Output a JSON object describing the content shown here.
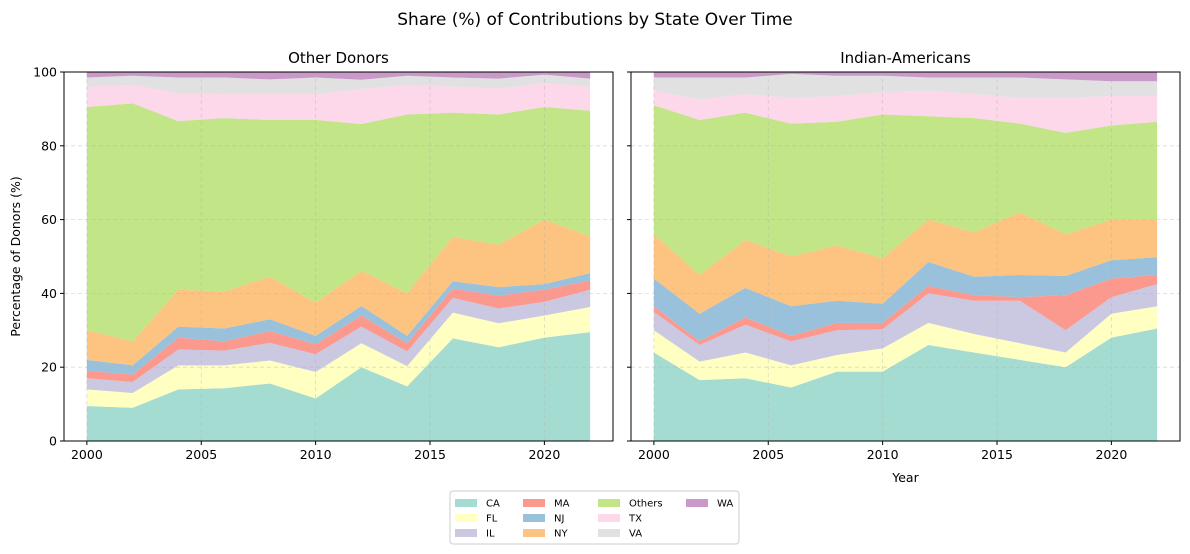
{
  "title": "Share (%) of Contributions by State Over Time",
  "chart_data": [
    {
      "type": "area",
      "stacked": true,
      "title": "Other Donors",
      "xlabel": "",
      "ylabel": "Percentage of Donors (%)",
      "xlim": [
        1999,
        2023
      ],
      "ylim": [
        0,
        100
      ],
      "xticks": [
        2000,
        2005,
        2010,
        2015,
        2020
      ],
      "yticks": [
        0,
        20,
        40,
        60,
        80,
        100
      ],
      "grid": true,
      "x": [
        2000,
        2002,
        2004,
        2006,
        2008,
        2010,
        2012,
        2014,
        2016,
        2018,
        2020,
        2022
      ],
      "series": [
        {
          "name": "CA",
          "color": "#8dd3c7",
          "values": [
            9.5,
            9.0,
            14.0,
            14.3,
            15.6,
            11.5,
            20.0,
            14.8,
            27.8,
            25.4,
            28.0,
            29.5
          ]
        },
        {
          "name": "FL",
          "color": "#ffffb3",
          "values": [
            4.5,
            4.0,
            6.5,
            6.2,
            6.2,
            7.2,
            6.5,
            5.5,
            7.0,
            6.5,
            6.0,
            6.8
          ]
        },
        {
          "name": "IL",
          "color": "#bebada",
          "values": [
            3.0,
            3.0,
            4.3,
            4.0,
            4.8,
            4.8,
            4.5,
            4.0,
            4.0,
            4.0,
            3.7,
            4.7
          ]
        },
        {
          "name": "MA",
          "color": "#fb8072",
          "values": [
            2.0,
            2.0,
            3.2,
            2.5,
            3.2,
            2.7,
            3.0,
            2.2,
            2.5,
            3.5,
            3.3,
            2.5
          ]
        },
        {
          "name": "NJ",
          "color": "#80b1d3",
          "values": [
            3.0,
            2.5,
            3.0,
            3.5,
            3.2,
            2.3,
            2.6,
            2.0,
            2.0,
            2.3,
            1.5,
            2.0
          ]
        },
        {
          "name": "NY",
          "color": "#fdb462",
          "values": [
            8.0,
            6.5,
            10.0,
            10.0,
            11.5,
            9.0,
            9.5,
            11.5,
            12.0,
            11.5,
            17.5,
            10.0
          ]
        },
        {
          "name": "Others",
          "color": "#b3de69",
          "values": [
            60.5,
            64.5,
            45.7,
            47.0,
            42.5,
            49.5,
            39.8,
            48.5,
            33.7,
            35.3,
            30.5,
            34.0
          ]
        },
        {
          "name": "TX",
          "color": "#fccde5",
          "values": [
            5.5,
            5.0,
            7.5,
            6.5,
            7.0,
            7.0,
            9.5,
            8.0,
            7.0,
            7.0,
            6.5,
            6.5
          ]
        },
        {
          "name": "VA",
          "color": "#d9d9d9",
          "values": [
            2.5,
            2.5,
            4.3,
            4.5,
            4.0,
            4.5,
            2.5,
            2.5,
            2.5,
            2.7,
            2.3,
            2.2
          ]
        },
        {
          "name": "WA",
          "color": "#bc80bd",
          "values": [
            1.5,
            1.0,
            1.5,
            1.5,
            2.0,
            1.5,
            2.1,
            1.0,
            1.5,
            1.8,
            0.7,
            1.8
          ]
        }
      ]
    },
    {
      "type": "area",
      "stacked": true,
      "title": "Indian-Americans",
      "xlabel": "Year",
      "ylabel": "",
      "xlim": [
        1999,
        2023
      ],
      "ylim": [
        0,
        100
      ],
      "xticks": [
        2000,
        2005,
        2010,
        2015,
        2020
      ],
      "yticks": [
        0,
        20,
        40,
        60,
        80,
        100
      ],
      "grid": true,
      "x": [
        2000,
        2002,
        2004,
        2006,
        2008,
        2010,
        2012,
        2014,
        2016,
        2018,
        2020,
        2022
      ],
      "series": [
        {
          "name": "CA",
          "color": "#8dd3c7",
          "values": [
            24.0,
            16.5,
            17.0,
            14.5,
            18.8,
            18.8,
            26.0,
            24.0,
            22.0,
            20.0,
            28.0,
            30.5
          ]
        },
        {
          "name": "FL",
          "color": "#ffffb3",
          "values": [
            6.0,
            5.0,
            7.0,
            6.0,
            4.5,
            6.3,
            6.0,
            5.0,
            4.5,
            4.0,
            6.5,
            6.0
          ]
        },
        {
          "name": "IL",
          "color": "#bebada",
          "values": [
            5.0,
            4.5,
            7.5,
            6.5,
            6.7,
            5.2,
            8.0,
            9.0,
            11.5,
            6.0,
            4.5,
            6.0
          ]
        },
        {
          "name": "MA",
          "color": "#fb8072",
          "values": [
            1.5,
            1.0,
            2.0,
            1.5,
            2.0,
            1.7,
            2.0,
            1.5,
            1.0,
            9.5,
            5.0,
            2.5
          ]
        },
        {
          "name": "NJ",
          "color": "#80b1d3",
          "values": [
            7.5,
            7.5,
            8.0,
            8.0,
            6.0,
            5.2,
            6.5,
            5.0,
            6.0,
            5.2,
            5.0,
            4.8
          ]
        },
        {
          "name": "NY",
          "color": "#fdb462",
          "values": [
            12.0,
            10.5,
            13.0,
            13.5,
            15.0,
            12.3,
            11.5,
            12.0,
            17.0,
            11.3,
            11.0,
            10.2
          ]
        },
        {
          "name": "Others",
          "color": "#b3de69",
          "values": [
            35.0,
            42.0,
            34.5,
            36.0,
            33.5,
            39.0,
            28.0,
            31.0,
            24.0,
            27.5,
            25.5,
            26.5
          ]
        },
        {
          "name": "TX",
          "color": "#fccde5",
          "values": [
            4.0,
            5.5,
            5.0,
            7.0,
            7.0,
            6.0,
            7.0,
            6.5,
            7.0,
            9.5,
            8.0,
            7.0
          ]
        },
        {
          "name": "VA",
          "color": "#d9d9d9",
          "values": [
            3.5,
            6.0,
            4.5,
            6.5,
            5.5,
            4.5,
            3.5,
            4.5,
            5.5,
            5.0,
            4.0,
            4.0
          ]
        },
        {
          "name": "WA",
          "color": "#bc80bd",
          "values": [
            1.5,
            1.5,
            1.5,
            0.5,
            1.0,
            1.0,
            1.5,
            1.5,
            1.5,
            2.0,
            2.5,
            2.5
          ]
        }
      ]
    }
  ],
  "legend": {
    "placement": "bottom-center",
    "columns": 4,
    "entries": [
      "CA",
      "FL",
      "IL",
      "MA",
      "NJ",
      "NY",
      "Others",
      "TX",
      "VA",
      "WA"
    ]
  }
}
